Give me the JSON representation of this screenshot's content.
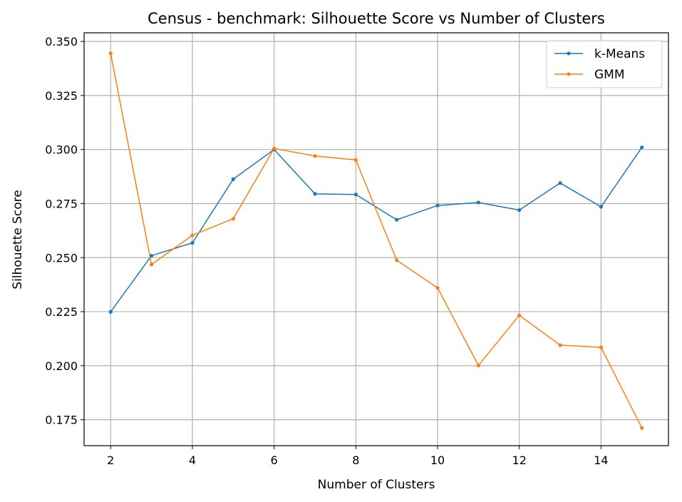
{
  "chart_data": {
    "type": "line",
    "title": "Census - benchmark: Silhouette Score vs Number of Clusters",
    "xlabel": "Number of Clusters",
    "ylabel": "Silhouette Score",
    "x": [
      2,
      3,
      4,
      5,
      6,
      7,
      8,
      9,
      10,
      11,
      12,
      13,
      14,
      15
    ],
    "xlim": [
      1.35,
      15.65
    ],
    "ylim": [
      0.163,
      0.354
    ],
    "xticks": [
      2,
      4,
      6,
      8,
      10,
      12,
      14
    ],
    "xtick_labels": [
      "2",
      "4",
      "6",
      "8",
      "10",
      "12",
      "14"
    ],
    "yticks": [
      0.175,
      0.2,
      0.225,
      0.25,
      0.275,
      0.3,
      0.325,
      0.35
    ],
    "ytick_labels": [
      "0.175",
      "0.200",
      "0.225",
      "0.250",
      "0.275",
      "0.300",
      "0.325",
      "0.350"
    ],
    "grid": true,
    "legend_position": "top-right",
    "series": [
      {
        "name": "k-Means",
        "color": "#1f77b4",
        "values": [
          0.2249,
          0.2509,
          0.2568,
          0.2863,
          0.3,
          0.2795,
          0.2792,
          0.2675,
          0.2741,
          0.2755,
          0.272,
          0.2845,
          0.2735,
          0.301
        ]
      },
      {
        "name": "GMM",
        "color": "#ff7f0e",
        "values": [
          0.3445,
          0.2468,
          0.2603,
          0.268,
          0.3005,
          0.297,
          0.2952,
          0.2488,
          0.236,
          0.2001,
          0.2233,
          0.2095,
          0.2085,
          0.1712
        ]
      }
    ]
  }
}
